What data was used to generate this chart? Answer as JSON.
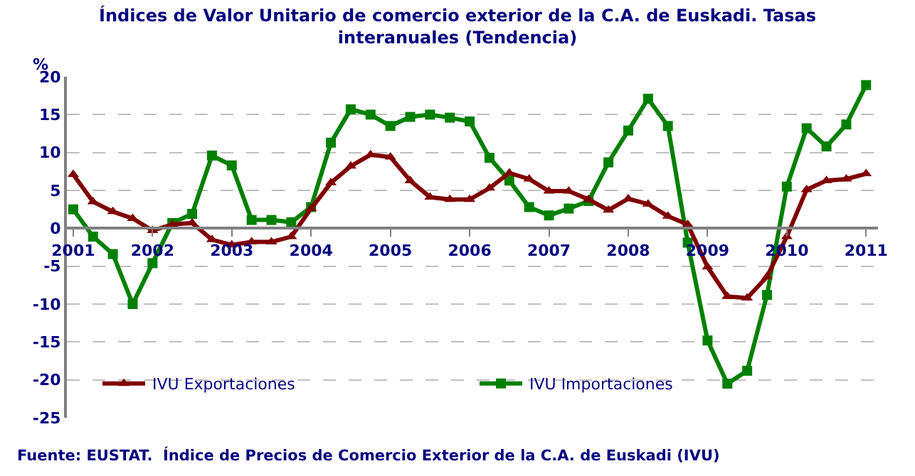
{
  "chart_data": {
    "type": "line",
    "title": "Índices de Valor Unitario de comercio exterior de la C.A. de Euskadi. Tasas interanuales (Tendencia)",
    "ylabel": "%",
    "x": [
      2001,
      2001.25,
      2001.5,
      2001.75,
      2002,
      2002.25,
      2002.5,
      2002.75,
      2003,
      2003.25,
      2003.5,
      2003.75,
      2004,
      2004.25,
      2004.5,
      2004.75,
      2005,
      2005.25,
      2005.5,
      2005.75,
      2006,
      2006.25,
      2006.5,
      2006.75,
      2007,
      2007.25,
      2007.5,
      2007.75,
      2008,
      2008.25,
      2008.5,
      2008.75,
      2009,
      2009.25,
      2009.5,
      2009.75,
      2010,
      2010.25,
      2010.5,
      2010.75,
      2011
    ],
    "series": [
      {
        "name": "IVU Exportaciones",
        "color": "#800000",
        "marker": "triangle",
        "values": [
          7.1,
          3.5,
          2.2,
          1.3,
          -0.3,
          0.5,
          0.7,
          -1.5,
          -2.2,
          -1.8,
          -1.8,
          -1.1,
          2.6,
          6.0,
          8.2,
          9.7,
          9.4,
          6.3,
          4.1,
          3.8,
          3.8,
          5.3,
          7.3,
          6.5,
          4.9,
          4.9,
          3.8,
          2.4,
          3.9,
          3.2,
          1.6,
          0.5,
          -5.1,
          -9.0,
          -9.2,
          -6.4,
          -1.1,
          5.1,
          6.3,
          6.5,
          7.2
        ]
      },
      {
        "name": "IVU Importaciones",
        "color": "#008000",
        "marker": "square",
        "values": [
          2.5,
          -1.1,
          -3.4,
          -10.0,
          -4.6,
          0.7,
          1.9,
          9.6,
          8.3,
          1.1,
          1.1,
          0.8,
          2.8,
          11.3,
          15.7,
          15.0,
          13.5,
          14.7,
          15.0,
          14.6,
          14.1,
          9.3,
          6.3,
          2.8,
          1.7,
          2.6,
          3.6,
          8.7,
          12.9,
          17.1,
          13.5,
          -1.9,
          -14.8,
          -20.5,
          -18.8,
          -8.8,
          5.5,
          13.2,
          10.8,
          13.7,
          18.9
        ]
      }
    ],
    "xlim": [
      2000.92,
      2011.15
    ],
    "xticks": [
      2001,
      2002,
      2003,
      2004,
      2005,
      2006,
      2007,
      2008,
      2009,
      2010,
      2011
    ],
    "ylim": [
      -25,
      20
    ],
    "yticks": [
      -25,
      -20,
      -15,
      -10,
      -5,
      0,
      5,
      10,
      15,
      20
    ],
    "grid": "y",
    "legend": "bottom",
    "line_style": "solid",
    "annotations": [
      "Fuente: EUSTAT.  Índice de Precios de Comercio Exterior de la C.A. de Euskadi (IVU)"
    ]
  }
}
